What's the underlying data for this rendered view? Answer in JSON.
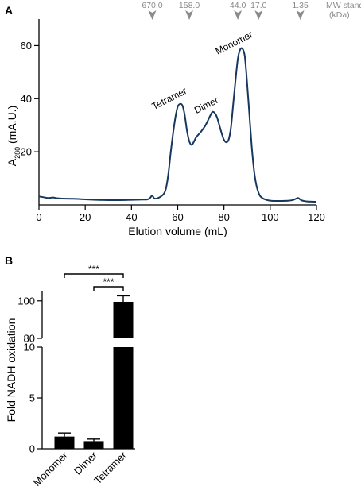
{
  "panel_a": {
    "label": "A",
    "ylabel_main": "A",
    "ylabel_sub": "280",
    "ylabel_unit": " (mA.U.)",
    "mw_title_line1": "MW standard",
    "mw_title_line2": "(kDa)"
  },
  "panel_b": {
    "label": "B",
    "significance": [
      "***",
      "***"
    ]
  },
  "chart_data": [
    {
      "type": "line",
      "xlabel": "Elution volume (mL)",
      "ylabel": "A280 (mA.U.)",
      "xlim": [
        0,
        120
      ],
      "ylim": [
        0,
        70
      ],
      "x_ticks": [
        0,
        20,
        40,
        60,
        80,
        100,
        120
      ],
      "y_ticks": [
        20,
        40,
        60
      ],
      "grid": false,
      "series": [
        {
          "x": [
            0,
            2,
            4,
            6,
            8,
            10,
            15,
            20,
            25,
            30,
            35,
            40,
            45,
            47,
            48,
            49,
            50,
            52,
            54,
            55,
            56,
            57,
            58,
            59,
            60,
            61,
            62,
            63,
            64,
            65,
            66,
            67,
            68,
            70,
            72,
            74,
            75,
            76,
            77,
            78,
            79,
            80,
            81,
            82,
            83,
            84,
            85,
            86,
            87,
            88,
            89,
            90,
            91,
            92,
            93,
            94,
            95,
            96,
            98,
            100,
            102,
            105,
            108,
            110,
            112,
            113,
            114,
            116,
            120
          ],
          "y": [
            3.2,
            2.9,
            2.6,
            2.8,
            2.5,
            2.4,
            2.3,
            2.1,
            1.9,
            1.8,
            1.8,
            1.9,
            2.0,
            2.1,
            2.6,
            3.5,
            2.4,
            2.8,
            4.2,
            6.5,
            12,
            20,
            27,
            33,
            37,
            38,
            37.5,
            34,
            28,
            24,
            22.6,
            23.8,
            25.5,
            27.5,
            30,
            33.5,
            35,
            34.6,
            33,
            30,
            27,
            24.5,
            23.6,
            24.5,
            29,
            38,
            47,
            55,
            58.5,
            58.8,
            56,
            46,
            34,
            22,
            13,
            7.5,
            4.5,
            3.0,
            2.0,
            1.6,
            1.5,
            1.5,
            1.6,
            1.9,
            2.6,
            2.0,
            1.6,
            1.3,
            1.2
          ]
        }
      ],
      "annotations": [
        {
          "text": "Tetramer",
          "x": 57,
          "y": 39
        },
        {
          "text": "Dimer",
          "x": 73,
          "y": 36.5
        },
        {
          "text": "Monomer",
          "x": 85,
          "y": 60
        }
      ],
      "mw_standards": [
        {
          "label": "670.0",
          "x": 49
        },
        {
          "label": "158.0",
          "x": 65
        },
        {
          "label": "44.0",
          "x": 86
        },
        {
          "label": "17.0",
          "x": 95
        },
        {
          "label": "1.35",
          "x": 113
        }
      ]
    },
    {
      "type": "bar",
      "categories": [
        "Monomer",
        "Dimer",
        "Tetramer"
      ],
      "values": [
        1.2,
        0.75,
        99.5
      ],
      "errors": [
        0.35,
        0.2,
        3.2
      ],
      "ylabel": "Fold NADH oxidation",
      "y_axis_break": [
        10,
        80
      ],
      "ylim_lower": [
        0,
        10
      ],
      "ylim_upper": [
        80,
        105
      ],
      "y_ticks_lower": [
        0,
        5,
        10
      ],
      "y_ticks_upper": [
        80,
        100
      ],
      "significance_pairs": [
        {
          "from": "Monomer",
          "to": "Tetramer",
          "label": "***"
        },
        {
          "from": "Dimer",
          "to": "Tetramer",
          "label": "***"
        }
      ]
    }
  ]
}
